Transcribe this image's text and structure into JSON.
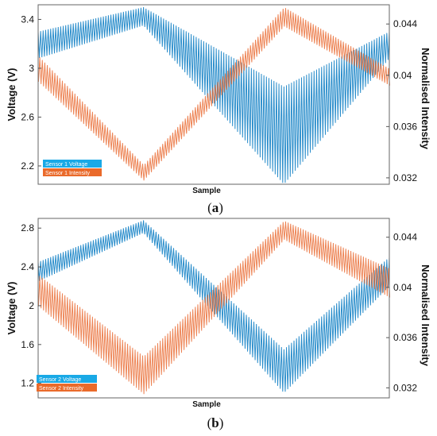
{
  "colors": {
    "voltage": "#1f87c8",
    "intensity": "#e8652a",
    "legend_voltage_bg": "#19a9e6",
    "legend_intensity_bg": "#ea6a2a"
  },
  "chart_data": [
    {
      "type": "line",
      "panel": "a",
      "panel_label_open": "(",
      "panel_label_letter": "a",
      "panel_label_close": ")",
      "xlabel": "Sample",
      "ylabel_left": "Voltage (V)",
      "ylabel_right": "Normalised Intensity",
      "ylim_left": [
        2.05,
        3.52
      ],
      "yticks_left": [
        2.2,
        2.6,
        3,
        3.4
      ],
      "ytick_labels_left": [
        "2.2",
        "2.6",
        "3",
        "3.4"
      ],
      "ylim_right": [
        0.0315,
        0.0455
      ],
      "yticks_right": [
        0.032,
        0.036,
        0.04,
        0.044
      ],
      "ytick_labels_right": [
        "0.032",
        "0.036",
        "0.04",
        "0.044"
      ],
      "legend_position": "bottom-left",
      "series": [
        {
          "name": "Sensor 1 Voltage",
          "axis": "left",
          "x": [
            0,
            0.3,
            0.7,
            1
          ],
          "upper": [
            3.3,
            3.5,
            2.85,
            3.3
          ],
          "lower": [
            3.08,
            3.35,
            2.05,
            3.08
          ]
        },
        {
          "name": "Sensor 1 Intensity",
          "axis": "right",
          "x": [
            0,
            0.3,
            0.7,
            1
          ],
          "upper": [
            0.0415,
            0.033,
            0.0453,
            0.0405
          ],
          "lower": [
            0.0395,
            0.0318,
            0.0438,
            0.0392
          ]
        }
      ]
    },
    {
      "type": "line",
      "panel": "b",
      "panel_label_open": "(",
      "panel_label_letter": "b",
      "panel_label_close": ")",
      "xlabel": "Sample",
      "ylabel_left": "Voltage (V)",
      "ylabel_right": "Normalised Intensity",
      "ylim_left": [
        1.05,
        2.9
      ],
      "yticks_left": [
        1.2,
        1.6,
        2,
        2.4,
        2.8
      ],
      "ytick_labels_left": [
        "1.2",
        "1.6",
        "2",
        "2.4",
        "2.8"
      ],
      "ylim_right": [
        0.0312,
        0.0455
      ],
      "yticks_right": [
        0.032,
        0.036,
        0.04,
        0.044
      ],
      "ytick_labels_right": [
        "0.032",
        "0.036",
        "0.04",
        "0.044"
      ],
      "legend_position": "bottom-left",
      "series": [
        {
          "name": "Sensor 2 Voltage",
          "axis": "left",
          "x": [
            0,
            0.3,
            0.7,
            1
          ],
          "upper": [
            2.45,
            2.88,
            1.55,
            2.5
          ],
          "lower": [
            2.25,
            2.75,
            1.1,
            2.2
          ]
        },
        {
          "name": "Sensor 2 Intensity",
          "axis": "right",
          "x": [
            0,
            0.3,
            0.7,
            1
          ],
          "upper": [
            0.041,
            0.0345,
            0.0453,
            0.0415
          ],
          "lower": [
            0.0385,
            0.0315,
            0.0438,
            0.0392
          ]
        }
      ]
    }
  ]
}
